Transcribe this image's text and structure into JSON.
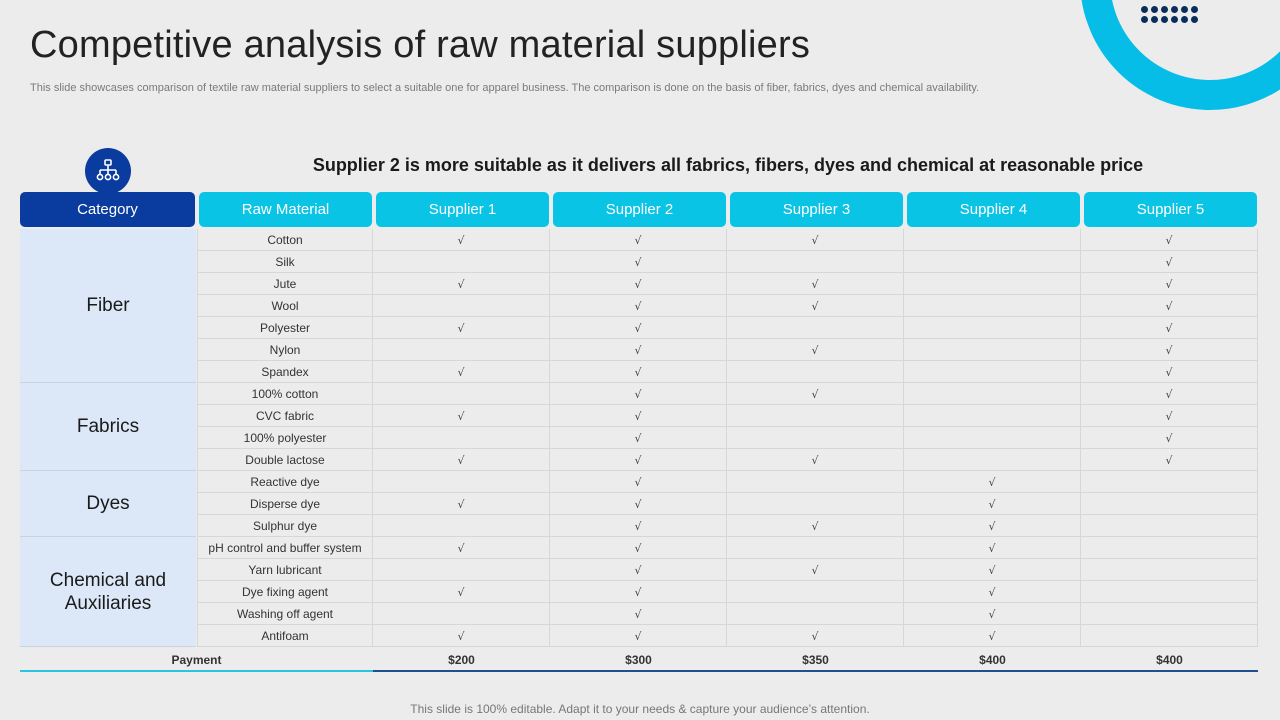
{
  "title": "Competitive analysis of raw material suppliers",
  "subtitle": "This slide showcases comparison of textile raw material suppliers to select a suitable one for apparel business. The comparison is done on the basis of fiber, fabrics, dyes and chemical availability.",
  "headline": "Supplier 2 is more suitable as it delivers all fabrics, fibers, dyes and chemical at reasonable price",
  "footer": "This slide is 100% editable. Adapt it to your needs & capture your audience’s attention.",
  "icons": {
    "hierarchy": "hierarchy-icon"
  },
  "colors": {
    "navy": "#0a3b9e",
    "cyan": "#09c4e4",
    "category_bg": "#dce8f8"
  },
  "check_symbol": "√",
  "headers": [
    "Category",
    "Raw Material",
    "Supplier 1",
    "Supplier 2",
    "Supplier 3",
    "Supplier 4",
    "Supplier 5"
  ],
  "categories": [
    {
      "name": "Fiber",
      "rows": [
        {
          "material": "Cotton",
          "checks": [
            true,
            true,
            true,
            false,
            true
          ]
        },
        {
          "material": "Silk",
          "checks": [
            false,
            true,
            false,
            false,
            true
          ]
        },
        {
          "material": "Jute",
          "checks": [
            true,
            true,
            true,
            false,
            true
          ]
        },
        {
          "material": "Wool",
          "checks": [
            false,
            true,
            true,
            false,
            true
          ]
        },
        {
          "material": "Polyester",
          "checks": [
            true,
            true,
            false,
            false,
            true
          ]
        },
        {
          "material": "Nylon",
          "checks": [
            false,
            true,
            true,
            false,
            true
          ]
        },
        {
          "material": "Spandex",
          "checks": [
            true,
            true,
            false,
            false,
            true
          ]
        }
      ]
    },
    {
      "name": "Fabrics",
      "rows": [
        {
          "material": "100% cotton",
          "checks": [
            false,
            true,
            true,
            false,
            true
          ]
        },
        {
          "material": "CVC fabric",
          "checks": [
            true,
            true,
            false,
            false,
            true
          ]
        },
        {
          "material": "100% polyester",
          "checks": [
            false,
            true,
            false,
            false,
            true
          ]
        },
        {
          "material": "Double lactose",
          "checks": [
            true,
            true,
            true,
            false,
            true
          ]
        }
      ]
    },
    {
      "name": "Dyes",
      "rows": [
        {
          "material": "Reactive dye",
          "checks": [
            false,
            true,
            false,
            true,
            false
          ]
        },
        {
          "material": "Disperse dye",
          "checks": [
            true,
            true,
            false,
            true,
            false
          ]
        },
        {
          "material": "Sulphur dye",
          "checks": [
            false,
            true,
            true,
            true,
            false
          ]
        }
      ]
    },
    {
      "name": "Chemical and Auxiliaries",
      "rows": [
        {
          "material": "pH control and buffer system",
          "checks": [
            true,
            true,
            false,
            true,
            false
          ]
        },
        {
          "material": "Yarn lubricant",
          "checks": [
            false,
            true,
            true,
            true,
            false
          ]
        },
        {
          "material": "Dye fixing agent",
          "checks": [
            true,
            true,
            false,
            true,
            false
          ]
        },
        {
          "material": "Washing off agent",
          "checks": [
            false,
            true,
            false,
            true,
            false
          ]
        },
        {
          "material": "Antifoam",
          "checks": [
            true,
            true,
            true,
            true,
            false
          ]
        }
      ]
    }
  ],
  "payment": {
    "label": "Payment",
    "values": [
      "$200",
      "$300",
      "$350",
      "$400",
      "$400"
    ]
  }
}
